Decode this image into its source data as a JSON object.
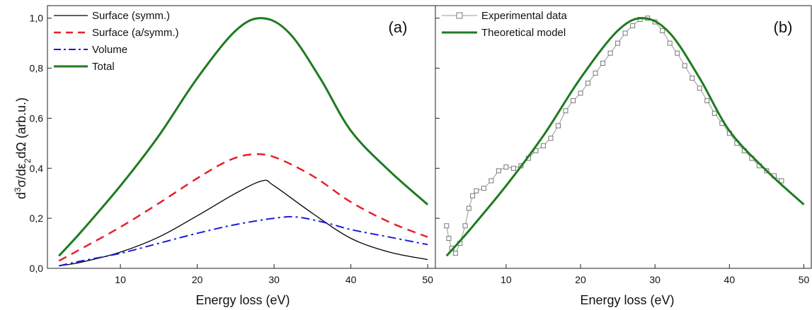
{
  "figure": {
    "ylabel": "d³σ/dε₂dΩ (arb.u.)",
    "ylabel_parts": {
      "d": "d",
      "sup3": "3",
      "sigma_mid": "σ/dε",
      "sub2": "2",
      "tail": "dΩ (arb.u.)"
    }
  },
  "chart_data": [
    {
      "type": "line",
      "panel_label": "(a)",
      "xlabel": "Energy loss (eV)",
      "ylabel": "d³σ/dε₂dΩ (arb.u.)",
      "xlim": [
        0.5,
        51
      ],
      "ylim": [
        0,
        1.05
      ],
      "xticks": [
        "10",
        "20",
        "30",
        "40",
        "50"
      ],
      "xtick_values": [
        10,
        20,
        30,
        40,
        50
      ],
      "yticks": [
        "0,0",
        "0,2",
        "0,4",
        "0,6",
        "0,8",
        "1,0"
      ],
      "ytick_values": [
        0,
        0.2,
        0.4,
        0.6,
        0.8,
        1.0
      ],
      "grid": false,
      "legend_position": "top-left",
      "series": [
        {
          "name": "Surface (symm.)",
          "color": "#000000",
          "style": "solid",
          "x": [
            2,
            5,
            10,
            15,
            20,
            25,
            28.5,
            30,
            35,
            40,
            45,
            50
          ],
          "y": [
            0.01,
            0.025,
            0.065,
            0.125,
            0.21,
            0.3,
            0.35,
            0.33,
            0.22,
            0.12,
            0.065,
            0.035
          ]
        },
        {
          "name": "Surface (a/symm.)",
          "color": "#e8202a",
          "style": "dashed",
          "x": [
            2,
            5,
            10,
            15,
            20,
            24,
            27,
            30,
            35,
            40,
            45,
            50
          ],
          "y": [
            0.03,
            0.08,
            0.165,
            0.26,
            0.36,
            0.43,
            0.455,
            0.445,
            0.37,
            0.265,
            0.185,
            0.125
          ]
        },
        {
          "name": "Volume",
          "color": "#1b1bdc",
          "style": "dashdot",
          "x": [
            2,
            5,
            10,
            15,
            20,
            25,
            30,
            33,
            37,
            40,
            45,
            50
          ],
          "y": [
            0.01,
            0.03,
            0.06,
            0.1,
            0.14,
            0.175,
            0.2,
            0.205,
            0.18,
            0.155,
            0.125,
            0.095
          ]
        },
        {
          "name": "Total",
          "color": "#1e7b1e",
          "style": "solid-thick",
          "x": [
            2,
            5,
            10,
            15,
            20,
            25,
            28.5,
            32,
            36,
            40,
            45,
            50
          ],
          "y": [
            0.05,
            0.15,
            0.33,
            0.53,
            0.76,
            0.95,
            1.0,
            0.94,
            0.76,
            0.55,
            0.39,
            0.255
          ]
        }
      ]
    },
    {
      "type": "line",
      "panel_label": "(b)",
      "xlabel": "Energy loss (eV)",
      "xlim": [
        0.5,
        51
      ],
      "ylim": [
        0,
        1.05
      ],
      "xticks": [
        "10",
        "20",
        "30",
        "40",
        "50"
      ],
      "xtick_values": [
        10,
        20,
        30,
        40,
        50
      ],
      "grid": false,
      "legend_position": "top-left",
      "series": [
        {
          "name": "Experimental data",
          "color": "#888888",
          "style": "square-markers",
          "x": [
            2,
            2.3,
            2.7,
            3.2,
            3.8,
            4.5,
            5,
            5.5,
            6,
            7,
            8,
            9,
            10,
            11,
            12,
            13,
            14,
            15,
            16,
            17,
            18,
            19,
            20,
            21,
            22,
            23,
            24,
            25,
            26,
            27,
            28,
            29,
            30,
            31,
            32,
            33,
            34,
            35,
            36,
            37,
            38,
            39,
            40,
            41,
            42,
            43,
            44,
            45,
            46,
            47
          ],
          "y": [
            0.17,
            0.12,
            0.08,
            0.06,
            0.1,
            0.17,
            0.24,
            0.29,
            0.31,
            0.32,
            0.35,
            0.39,
            0.405,
            0.4,
            0.41,
            0.44,
            0.47,
            0.49,
            0.52,
            0.57,
            0.63,
            0.67,
            0.7,
            0.74,
            0.78,
            0.82,
            0.86,
            0.9,
            0.94,
            0.97,
            0.995,
            1.0,
            0.985,
            0.95,
            0.9,
            0.86,
            0.81,
            0.76,
            0.72,
            0.67,
            0.62,
            0.58,
            0.54,
            0.5,
            0.47,
            0.44,
            0.41,
            0.39,
            0.37,
            0.35
          ]
        },
        {
          "name": "Theoretical model",
          "color": "#1e7b1e",
          "style": "solid-thick",
          "x": [
            2,
            5,
            10,
            15,
            20,
            25,
            28.5,
            32,
            36,
            40,
            45,
            50
          ],
          "y": [
            0.05,
            0.15,
            0.33,
            0.53,
            0.76,
            0.95,
            1.0,
            0.94,
            0.76,
            0.55,
            0.39,
            0.255
          ]
        }
      ]
    }
  ]
}
